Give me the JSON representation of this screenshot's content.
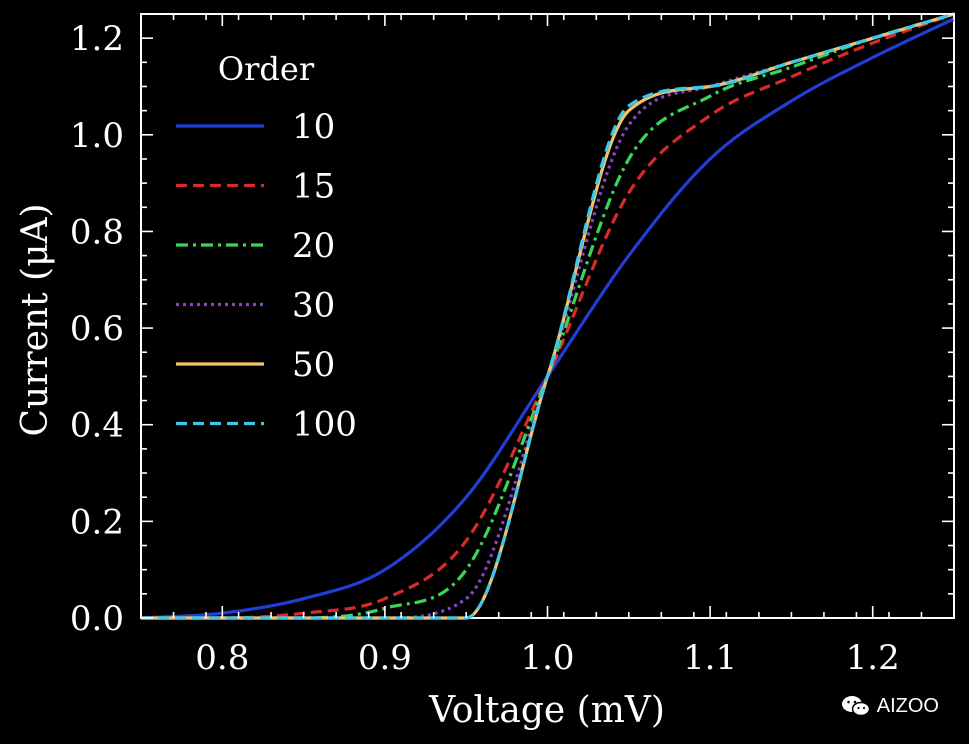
{
  "chart_data": {
    "type": "line",
    "xlabel": "Voltage (mV)",
    "ylabel": "Current (μA)",
    "xlim": [
      0.75,
      1.25
    ],
    "ylim": [
      0.0,
      1.25
    ],
    "x_ticks": [
      "0.8",
      "0.9",
      "1.0",
      "1.1",
      "1.2"
    ],
    "y_ticks": [
      "0.0",
      "0.2",
      "0.4",
      "0.6",
      "0.8",
      "1.0",
      "1.2"
    ],
    "grid": false,
    "legend_title": "Order",
    "legend_position": "top-left",
    "series": [
      {
        "name": "10",
        "color": "#1f3fd6",
        "style": "solid",
        "x": [
          0.75,
          0.8,
          0.85,
          0.9,
          0.95,
          1.0,
          1.05,
          1.1,
          1.15,
          1.2,
          1.25
        ],
        "y": [
          0.0,
          0.01,
          0.04,
          0.1,
          0.25,
          0.5,
          0.75,
          0.95,
          1.07,
          1.16,
          1.24
        ]
      },
      {
        "name": "15",
        "color": "#d92a2a",
        "style": "dashed",
        "x": [
          0.75,
          0.8,
          0.85,
          0.9,
          0.95,
          1.0,
          1.05,
          1.1,
          1.15,
          1.2,
          1.25
        ],
        "y": [
          0.0,
          0.0,
          0.01,
          0.04,
          0.16,
          0.5,
          0.88,
          1.04,
          1.12,
          1.19,
          1.25
        ]
      },
      {
        "name": "20",
        "color": "#3ad65a",
        "style": "dashdot",
        "x": [
          0.75,
          0.8,
          0.85,
          0.9,
          0.95,
          1.0,
          1.05,
          1.1,
          1.15,
          1.2,
          1.25
        ],
        "y": [
          0.0,
          0.0,
          0.0,
          0.02,
          0.1,
          0.5,
          0.95,
          1.08,
          1.14,
          1.2,
          1.25
        ]
      },
      {
        "name": "30",
        "color": "#8a44c8",
        "style": "dotted",
        "x": [
          0.75,
          0.8,
          0.85,
          0.9,
          0.95,
          1.0,
          1.05,
          1.1,
          1.15,
          1.2,
          1.25
        ],
        "y": [
          0.0,
          0.0,
          0.0,
          0.0,
          0.04,
          0.5,
          1.02,
          1.1,
          1.15,
          1.2,
          1.25
        ]
      },
      {
        "name": "50",
        "color": "#f5c26b",
        "style": "solid",
        "x": [
          0.75,
          0.8,
          0.85,
          0.9,
          0.95,
          1.0,
          1.05,
          1.1,
          1.15,
          1.2,
          1.25
        ],
        "y": [
          0.0,
          0.0,
          0.0,
          0.0,
          0.0,
          0.5,
          1.05,
          1.1,
          1.15,
          1.2,
          1.25
        ]
      },
      {
        "name": "100",
        "color": "#3cc8e6",
        "style": "dashed",
        "x": [
          0.75,
          0.8,
          0.85,
          0.9,
          0.95,
          1.0,
          1.05,
          1.1,
          1.15,
          1.2,
          1.25
        ],
        "y": [
          0.0,
          0.0,
          0.0,
          0.0,
          0.0,
          0.5,
          1.06,
          1.1,
          1.15,
          1.2,
          1.25
        ]
      }
    ]
  },
  "watermark": {
    "text": "AIZOO",
    "icon": "wechat-icon"
  }
}
